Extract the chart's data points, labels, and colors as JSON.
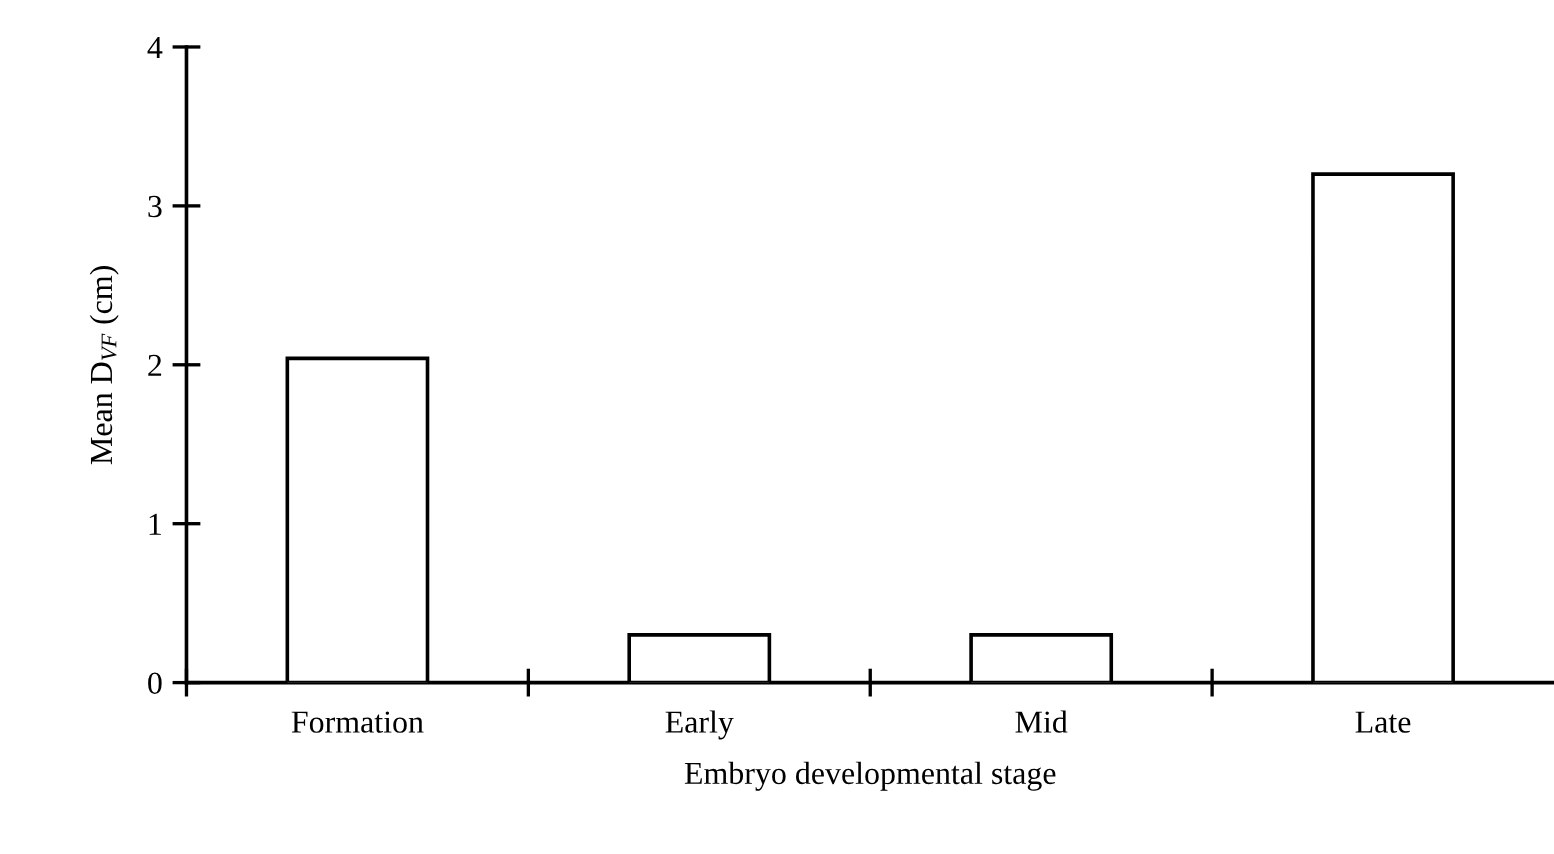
{
  "chart_data": {
    "type": "bar",
    "xlabel": "Embryo developmental stage",
    "ylabel": "Mean D$_{VF}$ (cm)",
    "categories": [
      "Formation",
      "Early",
      "Mid",
      "Late"
    ],
    "values": [
      2.04,
      0.3,
      0.3,
      3.2
    ],
    "color": "#ffffff",
    "ylim": [
      0,
      4
    ],
    "yticks": [
      0,
      1,
      2,
      3,
      4
    ],
    "grid": false,
    "legend": false
  }
}
